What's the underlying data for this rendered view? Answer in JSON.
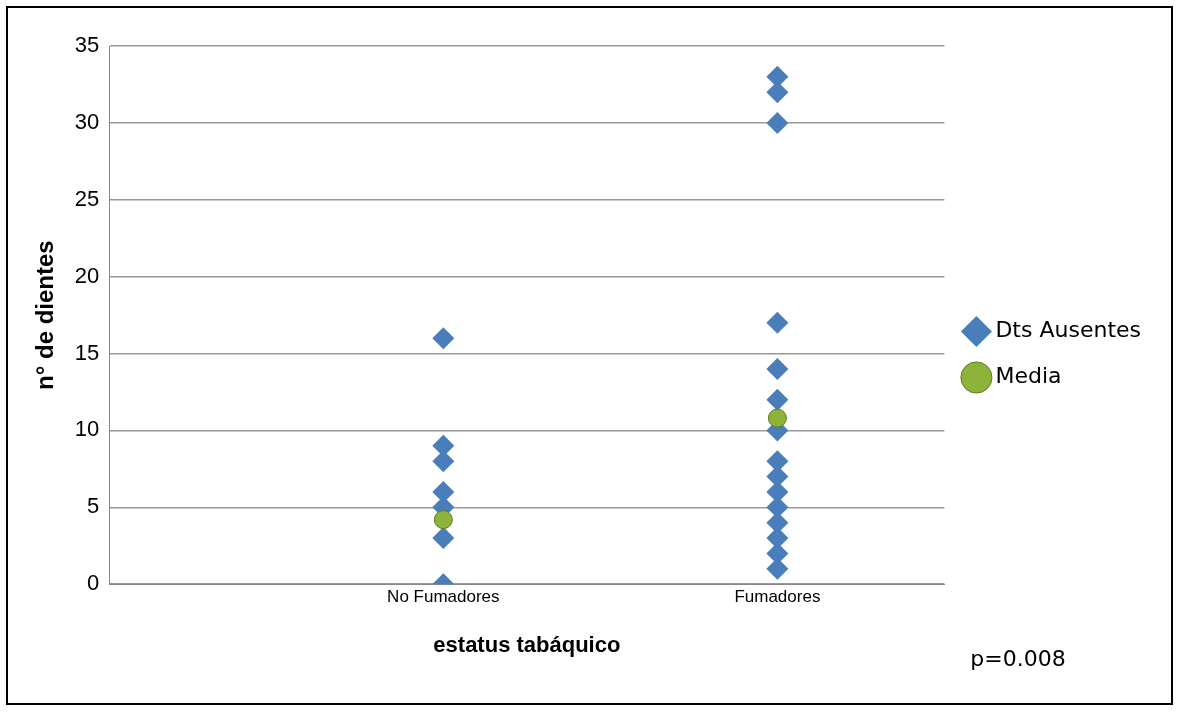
{
  "chart_data": {
    "type": "scatter",
    "xlabel": "estatus tabáquico",
    "ylabel": "n° de dientes",
    "categories": [
      "No Fumadores",
      "Fumadores"
    ],
    "series": [
      {
        "name": "Dts Ausentes",
        "color": "#4a7ebb",
        "marker": "diamond",
        "x": [
          "No Fumadores",
          "No Fumadores",
          "No Fumadores",
          "No Fumadores",
          "No Fumadores",
          "No Fumadores",
          "No Fumadores",
          "No Fumadores",
          "Fumadores",
          "Fumadores",
          "Fumadores",
          "Fumadores",
          "Fumadores",
          "Fumadores",
          "Fumadores",
          "Fumadores",
          "Fumadores",
          "Fumadores",
          "Fumadores",
          "Fumadores",
          "Fumadores",
          "Fumadores",
          "Fumadores"
        ],
        "values": [
          16,
          9,
          8,
          6,
          5,
          null,
          3,
          0,
          33,
          32,
          30,
          17,
          14,
          12,
          10,
          8,
          7,
          6,
          5,
          4,
          3,
          2,
          1
        ]
      },
      {
        "name": "Media",
        "color": "#8db33a",
        "marker": "circle",
        "x": [
          "No Fumadores",
          "Fumadores"
        ],
        "values": [
          4.2,
          10.8
        ]
      }
    ],
    "ylim": [
      0,
      35
    ],
    "yticks": [
      0,
      5,
      10,
      15,
      20,
      25,
      30,
      35
    ],
    "grid": "y",
    "legend": "right",
    "annotations": [
      "p=0.008"
    ]
  }
}
